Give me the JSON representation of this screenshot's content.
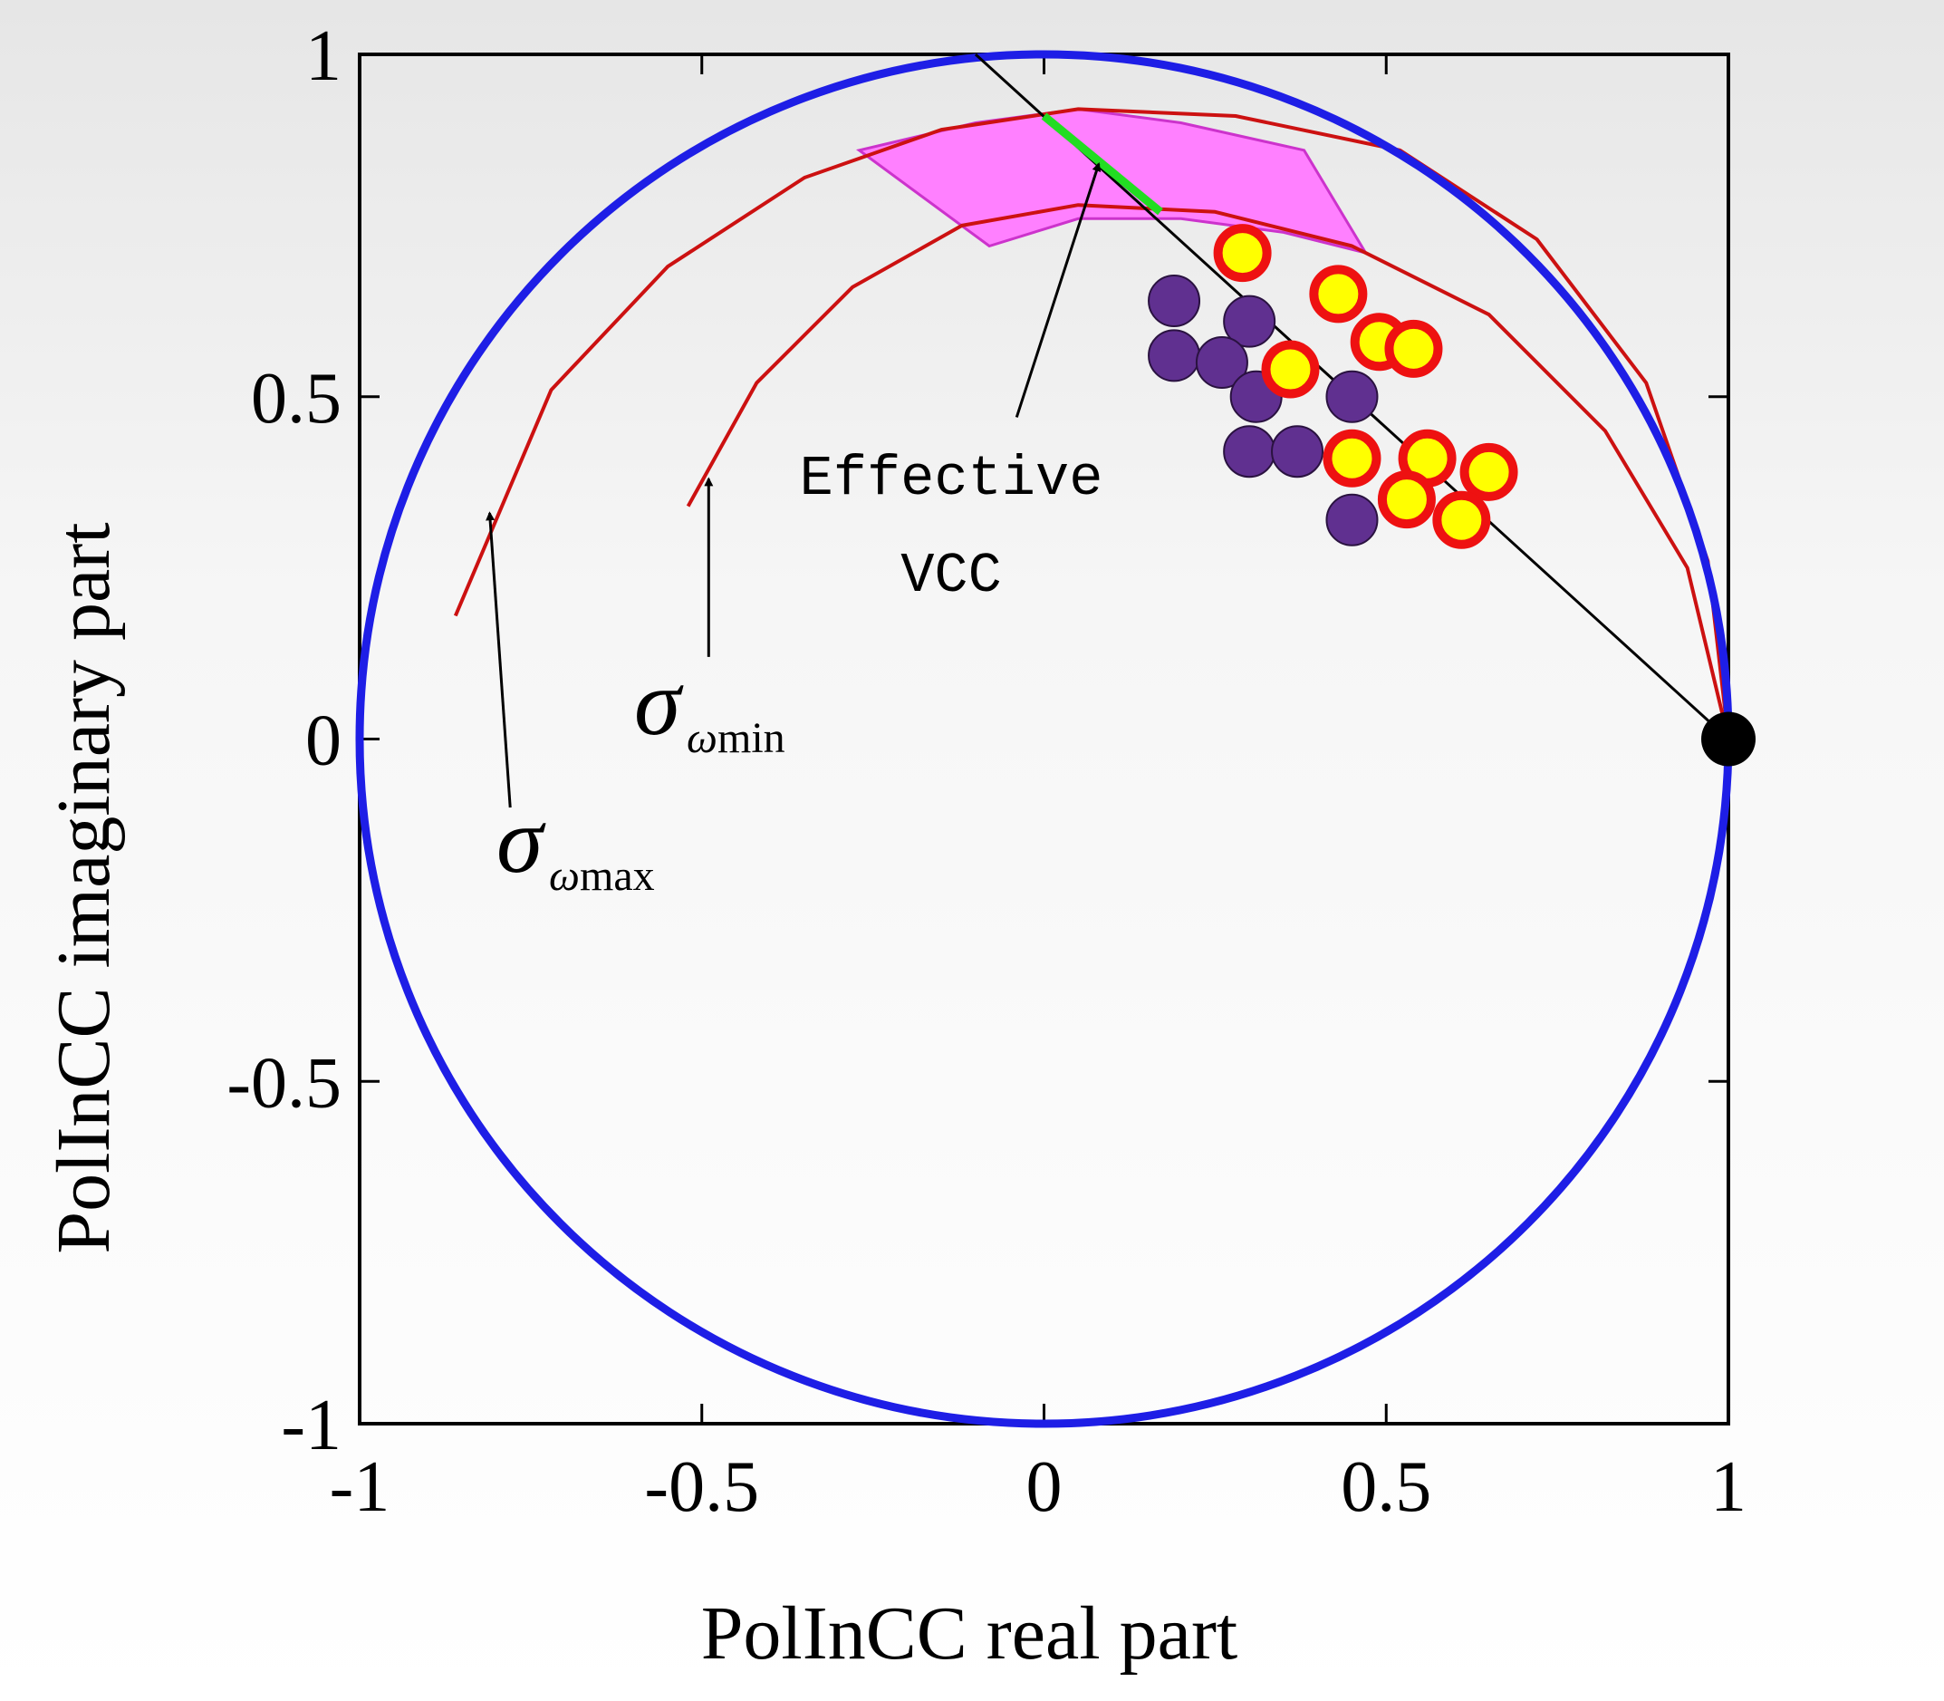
{
  "chart_data": {
    "type": "scatter",
    "xlabel": "PolInCC real part",
    "ylabel": "PolInCC imaginary part",
    "xlim": [
      -1,
      1
    ],
    "ylim": [
      -1,
      1
    ],
    "xticks": [
      -1,
      -0.5,
      0,
      0.5,
      1
    ],
    "yticks": [
      -1,
      -0.5,
      0,
      0.5,
      1
    ],
    "xtick_labels": [
      "-1",
      "-0.5",
      "0",
      "0.5",
      "1"
    ],
    "ytick_labels": [
      "-1",
      "-0.5",
      "0",
      "0.5",
      "1"
    ],
    "grid": false,
    "unit_circle": {
      "center": [
        0,
        0
      ],
      "radius": 1,
      "color": "#1e1ee6"
    },
    "arcs": [
      {
        "label": "σ_ωmax",
        "center": [
          0.09,
          -0.9
        ],
        "radius": 1.82,
        "from_deg": 60.0,
        "to_deg": 120.0,
        "color": "#cc1111"
      },
      {
        "label": "σ_ωmin",
        "center": [
          0.27,
          -0.63
        ],
        "radius": 1.4,
        "from_deg": 65.0,
        "to_deg": 123.0,
        "color": "#cc1111"
      },
      {
        "label": "σ_ωmax",
        "points": [
          [
            1.0,
            0.0
          ],
          [
            0.97,
            0.26
          ],
          [
            0.88,
            0.52
          ],
          [
            0.72,
            0.73
          ],
          [
            0.52,
            0.86
          ],
          [
            0.28,
            0.91
          ],
          [
            0.05,
            0.92
          ],
          [
            -0.15,
            0.89
          ],
          [
            -0.35,
            0.82
          ],
          [
            -0.55,
            0.69
          ],
          [
            -0.72,
            0.51
          ],
          [
            -0.86,
            0.18
          ]
        ],
        "color": "#cc1111"
      },
      {
        "label": "σ_ωmin",
        "points": [
          [
            1.0,
            0.0
          ],
          [
            0.94,
            0.25
          ],
          [
            0.82,
            0.45
          ],
          [
            0.65,
            0.62
          ],
          [
            0.45,
            0.72
          ],
          [
            0.25,
            0.77
          ],
          [
            0.05,
            0.78
          ],
          [
            -0.12,
            0.75
          ],
          [
            -0.28,
            0.66
          ],
          [
            -0.42,
            0.52
          ],
          [
            -0.52,
            0.34
          ]
        ],
        "color": "#cc1111"
      }
    ],
    "effective_region": {
      "color": "#ff80ff",
      "edge_color": "#cc33cc",
      "outer": [
        [
          -0.27,
          0.86
        ],
        [
          -0.1,
          0.9
        ],
        [
          0.05,
          0.92
        ],
        [
          0.2,
          0.9
        ],
        [
          0.38,
          0.86
        ]
      ],
      "inner": [
        [
          -0.08,
          0.72
        ],
        [
          0.05,
          0.76
        ],
        [
          0.2,
          0.76
        ],
        [
          0.35,
          0.74
        ],
        [
          0.47,
          0.71
        ]
      ]
    },
    "coherence_line": {
      "from": [
        1.0,
        0.0
      ],
      "to": [
        -0.1,
        1.0
      ],
      "color": "#000000"
    },
    "effective_segment": {
      "from": [
        0.0,
        0.91
      ],
      "to": [
        0.17,
        0.77
      ],
      "color": "#22dd22"
    },
    "reference_point": {
      "x": 1.0,
      "y": 0.0,
      "color": "#000000"
    },
    "series": [
      {
        "marker": "purple-circle",
        "color": "#603090",
        "x": [
          0.19,
          0.3,
          0.19,
          0.26,
          0.31,
          0.45,
          0.3,
          0.37,
          0.45
        ],
        "y": [
          0.64,
          0.61,
          0.56,
          0.55,
          0.5,
          0.5,
          0.42,
          0.42,
          0.32
        ]
      },
      {
        "marker": "yellow-red-ring",
        "fill": "#ffff00",
        "edge": "#ee1111",
        "x": [
          0.29,
          0.43,
          0.49,
          0.54,
          0.36,
          0.45,
          0.56,
          0.65,
          0.53,
          0.61
        ],
        "y": [
          0.71,
          0.65,
          0.58,
          0.57,
          0.54,
          0.41,
          0.41,
          0.39,
          0.35,
          0.32
        ]
      }
    ],
    "annotations": [
      {
        "text_line1": "Effective",
        "text_line2": "VCC",
        "arrow_from": [
          -0.04,
          0.47
        ],
        "arrow_to": [
          0.08,
          0.84
        ]
      },
      {
        "symbol": "σ",
        "sub_omega": "ω",
        "sub_text": "min",
        "arrow_from": [
          -0.49,
          0.12
        ],
        "arrow_to": [
          -0.49,
          0.38
        ]
      },
      {
        "symbol": "σ",
        "sub_omega": "ω",
        "sub_text": "max",
        "arrow_from": [
          -0.78,
          -0.1
        ],
        "arrow_to": [
          -0.81,
          0.33
        ]
      }
    ]
  }
}
